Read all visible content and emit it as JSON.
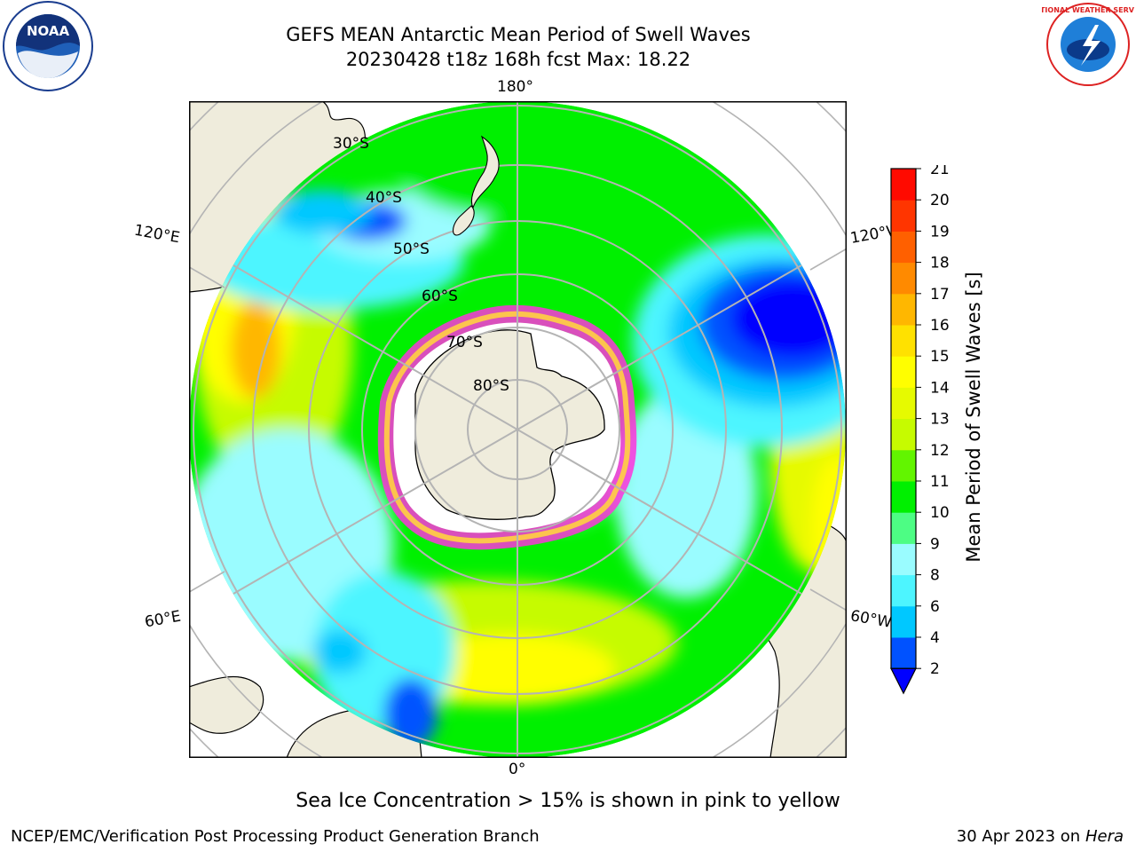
{
  "header": {
    "title_line1": "GEFS MEAN Antarctic Mean Period of Swell Waves",
    "title_line2": "20230428 t18z 168h fcst   Max: 18.22"
  },
  "logos": {
    "left": {
      "name": "noaa-logo",
      "text": "NOAA"
    },
    "right": {
      "name": "nws-logo",
      "text": "NATIONAL WEATHER SERVICE"
    }
  },
  "map": {
    "projection": "south-polar-stereographic",
    "lon_labels": {
      "top": "180°",
      "bottom": "0°",
      "upper_left": "120°E",
      "upper_right": "120°W",
      "lower_left": "60°E",
      "lower_right": "60°W"
    },
    "lat_labels": [
      "30°S",
      "40°S",
      "50°S",
      "60°S",
      "70°S",
      "80°S"
    ]
  },
  "colorbar": {
    "label": "Mean Period of Swell Waves [s]",
    "ticks": [
      "2",
      "4",
      "6",
      "8",
      "9",
      "10",
      "11",
      "12",
      "13",
      "14",
      "15",
      "16",
      "17",
      "18",
      "19",
      "20",
      "21"
    ],
    "colors": [
      "#0052ff",
      "#00c8ff",
      "#4df5ff",
      "#9afcff",
      "#4dfd84",
      "#00f000",
      "#62f500",
      "#c6fb00",
      "#e6fa00",
      "#fffe00",
      "#ffe100",
      "#ffb700",
      "#ff8a00",
      "#ff6000",
      "#ff3500",
      "#ff0a00"
    ],
    "extend_below_color": "#0000ff"
  },
  "footer": {
    "note": "Sea Ice Concentration > 15% is shown in pink to yellow",
    "credit": "NCEP/EMC/Verification Post Processing Product Generation Branch",
    "date": "30 Apr 2023 on ",
    "machine": "Hera"
  }
}
